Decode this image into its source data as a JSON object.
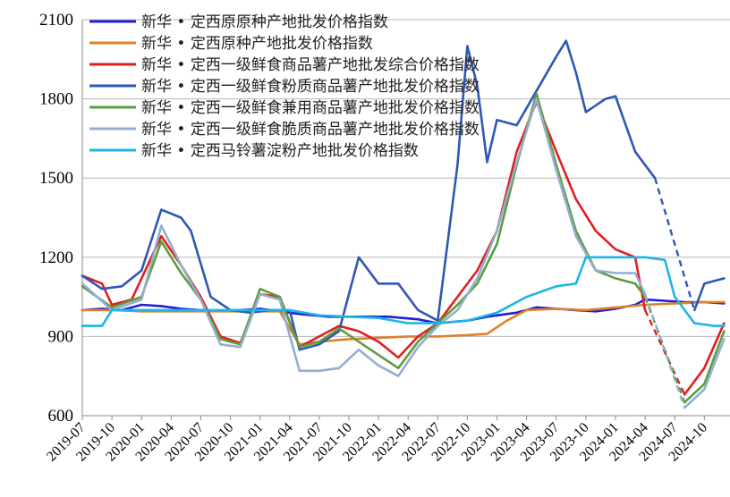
{
  "chart_data": {
    "type": "line",
    "title": "",
    "xlabel": "",
    "ylabel": "",
    "ylim": [
      600,
      2100
    ],
    "yticks": [
      600,
      900,
      1200,
      1500,
      1800,
      2100
    ],
    "xticks": [
      "2019-07",
      "2019-10",
      "2020-01",
      "2020-04",
      "2020-07",
      "2020-10",
      "2021-01",
      "2021-04",
      "2021-07",
      "2021-10",
      "2022-01",
      "2022-04",
      "2022-07",
      "2022-10",
      "2023-01",
      "2023-04",
      "2023-07",
      "2023-10",
      "2024-01",
      "2024-04",
      "2024-07",
      "2024-10"
    ],
    "grid": "horizontal",
    "legend": "top-left",
    "series": [
      {
        "name": "新华 • 定西原原种产地批发价格指数",
        "color": "#1f1fd6",
        "points": [
          [
            "2019-07",
            1000
          ],
          [
            "2019-09",
            1005
          ],
          [
            "2019-11",
            1000
          ],
          [
            "2020-01",
            1020
          ],
          [
            "2020-03",
            1015
          ],
          [
            "2020-05",
            1005
          ],
          [
            "2020-07",
            1000
          ],
          [
            "2020-09",
            998
          ],
          [
            "2020-11",
            1000
          ],
          [
            "2021-01",
            1005
          ],
          [
            "2021-03",
            995
          ],
          [
            "2021-05",
            985
          ],
          [
            "2021-08",
            975
          ],
          [
            "2021-11",
            975
          ],
          [
            "2022-02",
            975
          ],
          [
            "2022-05",
            965
          ],
          [
            "2022-07",
            950
          ],
          [
            "2022-10",
            960
          ],
          [
            "2022-12",
            975
          ],
          [
            "2023-03",
            990
          ],
          [
            "2023-05",
            1010
          ],
          [
            "2023-07",
            1005
          ],
          [
            "2023-09",
            1000
          ],
          [
            "2023-11",
            995
          ],
          [
            "2024-01",
            1005
          ],
          [
            "2024-03",
            1020
          ],
          [
            "2024-04",
            1040
          ],
          [
            "2024-06",
            1035
          ],
          [
            "2024-08",
            1030
          ],
          [
            "2024-10",
            1030
          ],
          [
            "2024-12",
            1025
          ]
        ]
      },
      {
        "name": "新华 • 定西原种产地批发价格指数",
        "color": "#e0802a",
        "points": [
          [
            "2019-07",
            1000
          ],
          [
            "2019-10",
            1000
          ],
          [
            "2020-01",
            995
          ],
          [
            "2020-04",
            995
          ],
          [
            "2020-07",
            995
          ],
          [
            "2020-10",
            995
          ],
          [
            "2021-01",
            995
          ],
          [
            "2021-03",
            995
          ],
          [
            "2021-05",
            870
          ],
          [
            "2021-07",
            880
          ],
          [
            "2021-10",
            890
          ],
          [
            "2022-01",
            895
          ],
          [
            "2022-04",
            900
          ],
          [
            "2022-07",
            900
          ],
          [
            "2022-10",
            905
          ],
          [
            "2022-12",
            910
          ],
          [
            "2023-02",
            960
          ],
          [
            "2023-04",
            1000
          ],
          [
            "2023-07",
            1005
          ],
          [
            "2023-10",
            1000
          ],
          [
            "2024-01",
            1010
          ],
          [
            "2024-04",
            1020
          ],
          [
            "2024-07",
            1025
          ],
          [
            "2024-10",
            1030
          ],
          [
            "2024-12",
            1030
          ]
        ]
      },
      {
        "name": "新华 • 定西一级鲜食商品薯产地批发综合价格指数",
        "color": "#e01f1f",
        "points": [
          [
            "2019-07",
            1130
          ],
          [
            "2019-09",
            1100
          ],
          [
            "2019-10",
            1020
          ],
          [
            "2019-12",
            1040
          ],
          [
            "2020-02",
            1200
          ],
          [
            "2020-03",
            1280
          ],
          [
            "2020-05",
            1170
          ],
          [
            "2020-07",
            1050
          ],
          [
            "2020-09",
            900
          ],
          [
            "2020-11",
            875
          ],
          [
            "2021-01",
            1060
          ],
          [
            "2021-03",
            1050
          ],
          [
            "2021-05",
            860
          ],
          [
            "2021-07",
            900
          ],
          [
            "2021-09",
            940
          ],
          [
            "2021-11",
            920
          ],
          [
            "2022-01",
            880
          ],
          [
            "2022-03",
            820
          ],
          [
            "2022-05",
            900
          ],
          [
            "2022-07",
            950
          ],
          [
            "2022-09",
            1050
          ],
          [
            "2022-11",
            1150
          ],
          [
            "2023-01",
            1300
          ],
          [
            "2023-03",
            1600
          ],
          [
            "2023-05",
            1790
          ],
          [
            "2023-07",
            1600
          ],
          [
            "2023-09",
            1420
          ],
          [
            "2023-11",
            1300
          ],
          [
            "2024-01",
            1230
          ],
          [
            "2024-03",
            1200
          ],
          [
            "2024-04",
            1000
          ],
          [
            "2024-08",
            680
          ],
          [
            "2024-10",
            780
          ],
          [
            "2024-12",
            950
          ]
        ]
      },
      {
        "name": "新华 • 定西一级鲜食粉质商品薯产地批发价格指数",
        "color": "#2e58b5",
        "points": [
          [
            "2019-07",
            1130
          ],
          [
            "2019-09",
            1080
          ],
          [
            "2019-11",
            1090
          ],
          [
            "2020-01",
            1150
          ],
          [
            "2020-03",
            1380
          ],
          [
            "2020-05",
            1350
          ],
          [
            "2020-06",
            1300
          ],
          [
            "2020-08",
            1050
          ],
          [
            "2020-10",
            1000
          ],
          [
            "2020-12",
            990
          ],
          [
            "2021-02",
            1000
          ],
          [
            "2021-04",
            1000
          ],
          [
            "2021-05",
            850
          ],
          [
            "2021-07",
            870
          ],
          [
            "2021-09",
            920
          ],
          [
            "2021-11",
            1200
          ],
          [
            "2022-01",
            1100
          ],
          [
            "2022-03",
            1100
          ],
          [
            "2022-05",
            1000
          ],
          [
            "2022-07",
            960
          ],
          [
            "2022-09",
            1550
          ],
          [
            "2022-10",
            2000
          ],
          [
            "2022-11",
            1850
          ],
          [
            "2022-12",
            1560
          ],
          [
            "2023-01",
            1720
          ],
          [
            "2023-03",
            1700
          ],
          [
            "2023-05",
            1830
          ],
          [
            "2023-07",
            1960
          ],
          [
            "2023-08",
            2020
          ],
          [
            "2023-09",
            1900
          ],
          [
            "2023-10",
            1750
          ],
          [
            "2023-12",
            1800
          ],
          [
            "2024-01",
            1810
          ],
          [
            "2024-03",
            1600
          ],
          [
            "2024-05",
            1500
          ],
          [
            "2024-09",
            1000
          ],
          [
            "2024-10",
            1100
          ],
          [
            "2024-12",
            1120
          ]
        ]
      },
      {
        "name": "新华 • 定西一级鲜食兼用商品薯产地批发价格指数",
        "color": "#5e9c3f",
        "points": [
          [
            "2019-07",
            1090
          ],
          [
            "2019-10",
            1010
          ],
          [
            "2020-01",
            1050
          ],
          [
            "2020-03",
            1260
          ],
          [
            "2020-05",
            1140
          ],
          [
            "2020-07",
            1040
          ],
          [
            "2020-09",
            890
          ],
          [
            "2020-11",
            870
          ],
          [
            "2021-01",
            1080
          ],
          [
            "2021-03",
            1050
          ],
          [
            "2021-05",
            860
          ],
          [
            "2021-07",
            880
          ],
          [
            "2021-09",
            930
          ],
          [
            "2021-11",
            880
          ],
          [
            "2022-01",
            830
          ],
          [
            "2022-03",
            780
          ],
          [
            "2022-05",
            880
          ],
          [
            "2022-07",
            950
          ],
          [
            "2022-09",
            1020
          ],
          [
            "2022-11",
            1100
          ],
          [
            "2023-01",
            1250
          ],
          [
            "2023-03",
            1550
          ],
          [
            "2023-05",
            1820
          ],
          [
            "2023-07",
            1550
          ],
          [
            "2023-09",
            1300
          ],
          [
            "2023-11",
            1150
          ],
          [
            "2024-01",
            1120
          ],
          [
            "2024-03",
            1100
          ],
          [
            "2024-04",
            1050
          ],
          [
            "2024-08",
            650
          ],
          [
            "2024-10",
            720
          ],
          [
            "2024-12",
            920
          ]
        ]
      },
      {
        "name": "新华 • 定西一级鲜食脆质商品薯产地批发价格指数",
        "color": "#93aed0",
        "points": [
          [
            "2019-07",
            1100
          ],
          [
            "2019-10",
            1000
          ],
          [
            "2020-01",
            1040
          ],
          [
            "2020-03",
            1320
          ],
          [
            "2020-05",
            1170
          ],
          [
            "2020-07",
            1040
          ],
          [
            "2020-09",
            870
          ],
          [
            "2020-11",
            860
          ],
          [
            "2021-01",
            1060
          ],
          [
            "2021-03",
            1040
          ],
          [
            "2021-05",
            770
          ],
          [
            "2021-07",
            770
          ],
          [
            "2021-09",
            780
          ],
          [
            "2021-11",
            850
          ],
          [
            "2022-01",
            790
          ],
          [
            "2022-03",
            750
          ],
          [
            "2022-05",
            860
          ],
          [
            "2022-07",
            940
          ],
          [
            "2022-09",
            1000
          ],
          [
            "2022-11",
            1120
          ],
          [
            "2023-01",
            1300
          ],
          [
            "2023-03",
            1560
          ],
          [
            "2023-05",
            1800
          ],
          [
            "2023-07",
            1530
          ],
          [
            "2023-09",
            1280
          ],
          [
            "2023-11",
            1150
          ],
          [
            "2024-01",
            1140
          ],
          [
            "2024-03",
            1140
          ],
          [
            "2024-04",
            1060
          ],
          [
            "2024-08",
            630
          ],
          [
            "2024-10",
            700
          ],
          [
            "2024-12",
            890
          ]
        ]
      },
      {
        "name": "新华 • 定西马铃薯淀粉产地批发价格指数",
        "color": "#1eb4e6",
        "points": [
          [
            "2019-07",
            940
          ],
          [
            "2019-09",
            940
          ],
          [
            "2019-10",
            1000
          ],
          [
            "2020-01",
            1000
          ],
          [
            "2020-04",
            1000
          ],
          [
            "2020-07",
            1000
          ],
          [
            "2020-10",
            1000
          ],
          [
            "2021-01",
            1000
          ],
          [
            "2021-04",
            1000
          ],
          [
            "2021-07",
            980
          ],
          [
            "2021-10",
            975
          ],
          [
            "2022-01",
            970
          ],
          [
            "2022-04",
            950
          ],
          [
            "2022-07",
            950
          ],
          [
            "2022-10",
            960
          ],
          [
            "2023-01",
            990
          ],
          [
            "2023-04",
            1050
          ],
          [
            "2023-07",
            1090
          ],
          [
            "2023-09",
            1100
          ],
          [
            "2023-10",
            1200
          ],
          [
            "2024-01",
            1200
          ],
          [
            "2024-04",
            1200
          ],
          [
            "2024-06",
            1190
          ],
          [
            "2024-07",
            1050
          ],
          [
            "2024-09",
            950
          ],
          [
            "2024-11",
            940
          ],
          [
            "2024-12",
            940
          ]
        ]
      }
    ]
  }
}
